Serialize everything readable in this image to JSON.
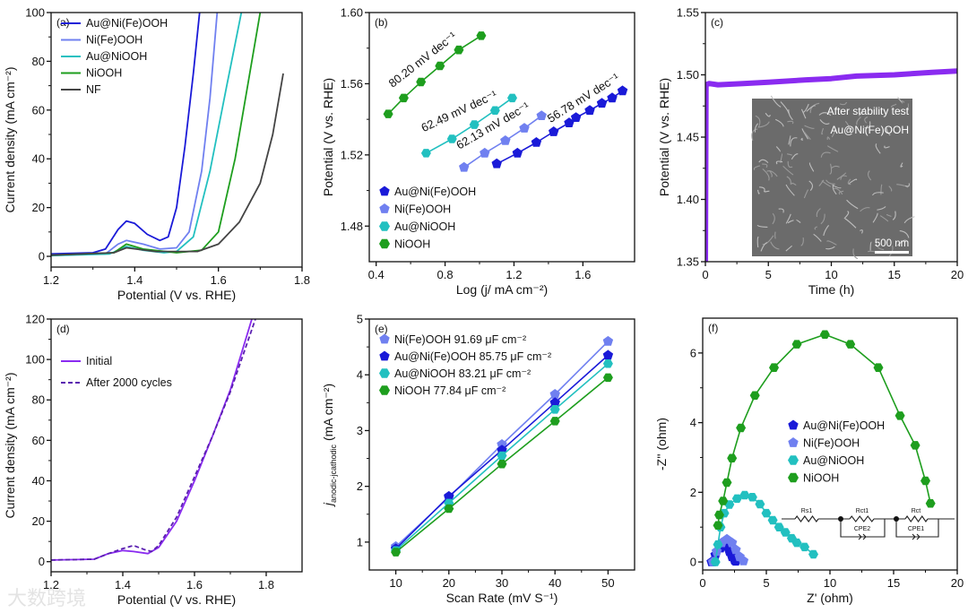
{
  "watermark": "大数跨境",
  "chart_data": [
    {
      "panel": "(a)",
      "type": "line",
      "xlabel": "Potential (V vs. RHE)",
      "ylabel": "Current density (mA cm⁻²)",
      "xlim": [
        1.2,
        1.8
      ],
      "ylim": [
        -4.4,
        100
      ],
      "xticks": [
        1.2,
        1.4,
        1.6,
        1.8
      ],
      "xtick_labels": [
        "1.2",
        "1.4",
        "1.6",
        "1.8"
      ],
      "yticks": [
        0,
        20,
        40,
        60,
        80,
        100
      ],
      "ytick_labels": [
        "0",
        "20",
        "40",
        "60",
        "80",
        "100"
      ],
      "legend": "top-left",
      "series": [
        {
          "name": "Au@Ni(Fe)OOH",
          "color": "#1a1ad8",
          "x": [
            1.2,
            1.3,
            1.33,
            1.36,
            1.38,
            1.4,
            1.43,
            1.46,
            1.48,
            1.5,
            1.52,
            1.54,
            1.555
          ],
          "y": [
            1,
            1.5,
            3,
            11,
            14.5,
            13.5,
            9,
            6.5,
            8,
            20,
            45,
            75,
            100
          ]
        },
        {
          "name": "Ni(Fe)OOH",
          "color": "#7080f0",
          "x": [
            1.2,
            1.33,
            1.36,
            1.38,
            1.42,
            1.46,
            1.5,
            1.53,
            1.56,
            1.58,
            1.597
          ],
          "y": [
            0.5,
            1,
            5,
            6.5,
            5,
            3,
            3.5,
            10,
            35,
            65,
            100
          ]
        },
        {
          "name": "Au@NiOOH",
          "color": "#22c0c0",
          "x": [
            1.2,
            1.34,
            1.38,
            1.42,
            1.47,
            1.5,
            1.54,
            1.58,
            1.62,
            1.655
          ],
          "y": [
            0.3,
            1,
            4,
            2.5,
            1.5,
            2,
            8,
            35,
            70,
            100
          ]
        },
        {
          "name": "NiOOH",
          "color": "#1e9e1e",
          "x": [
            1.2,
            1.35,
            1.38,
            1.42,
            1.5,
            1.56,
            1.6,
            1.64,
            1.67,
            1.7
          ],
          "y": [
            0.5,
            1.5,
            5,
            3,
            1.5,
            2.5,
            10,
            40,
            70,
            100
          ]
        },
        {
          "name": "NF",
          "color": "#444444",
          "x": [
            1.2,
            1.35,
            1.38,
            1.45,
            1.55,
            1.6,
            1.65,
            1.7,
            1.73,
            1.755
          ],
          "y": [
            0.5,
            1.5,
            3.5,
            2,
            2,
            5,
            14,
            30,
            50,
            75
          ]
        }
      ]
    },
    {
      "panel": "(b)",
      "type": "scatter",
      "xlabel": "Log (j/ mA cm⁻²)",
      "ylabel": "Potential (V vs. RHE)",
      "xlim": [
        0.36,
        1.9
      ],
      "ylim": [
        1.46,
        1.6
      ],
      "xticks": [
        0.4,
        0.8,
        1.2,
        1.6
      ],
      "xtick_labels": [
        "0.4",
        "0.8",
        "1.2",
        "1.6"
      ],
      "yticks": [
        1.48,
        1.52,
        1.56,
        1.6
      ],
      "ytick_labels": [
        "1.48",
        "1.52",
        "1.56",
        "1.60"
      ],
      "legend": "bottom-left",
      "annotations": [
        "80.20 mV dec⁻¹",
        "62.49 mV dec⁻¹",
        "62.13 mV dec⁻¹",
        "56.78 mV dec⁻¹"
      ],
      "series": [
        {
          "name": "Au@Ni(Fe)OOH",
          "color": "#1a1ad8",
          "marker": "pentagon",
          "tafel_slope": 56.78,
          "x": [
            1.1,
            1.22,
            1.33,
            1.43,
            1.52,
            1.56,
            1.64,
            1.71,
            1.77,
            1.83
          ],
          "y": [
            1.515,
            1.521,
            1.527,
            1.533,
            1.538,
            1.541,
            1.545,
            1.549,
            1.552,
            1.556
          ]
        },
        {
          "name": "Ni(Fe)OOH",
          "color": "#7080f0",
          "marker": "pentagon",
          "tafel_slope": 62.13,
          "x": [
            0.91,
            1.03,
            1.15,
            1.26,
            1.36
          ],
          "y": [
            1.513,
            1.521,
            1.528,
            1.535,
            1.542
          ]
        },
        {
          "name": "Au@NiOOH",
          "color": "#22c0c0",
          "marker": "hexagon",
          "tafel_slope": 62.49,
          "x": [
            0.69,
            0.84,
            0.97,
            1.09,
            1.19
          ],
          "y": [
            1.521,
            1.529,
            1.537,
            1.545,
            1.552
          ]
        },
        {
          "name": "NiOOH",
          "color": "#1e9e1e",
          "marker": "hexagon",
          "tafel_slope": 80.2,
          "x": [
            0.47,
            0.56,
            0.66,
            0.77,
            0.88,
            1.01
          ],
          "y": [
            1.543,
            1.552,
            1.561,
            1.57,
            1.579,
            1.587
          ]
        }
      ]
    },
    {
      "panel": "(c)",
      "type": "line",
      "xlabel": "Time (h)",
      "ylabel": "Potential (V vs. RHE)",
      "xlim": [
        0,
        20
      ],
      "ylim": [
        1.35,
        1.55
      ],
      "xticks": [
        0,
        5,
        10,
        15,
        20
      ],
      "xtick_labels": [
        "0",
        "5",
        "10",
        "15",
        "20"
      ],
      "yticks": [
        1.35,
        1.4,
        1.45,
        1.5,
        1.55
      ],
      "ytick_labels": [
        "1.35",
        "1.40",
        "1.45",
        "1.50",
        "1.55"
      ],
      "inset": {
        "title": "After stability test",
        "sample": "Au@Ni(Fe)OOH",
        "scale_bar": "500 nm"
      },
      "series": [
        {
          "name": "Au@Ni(Fe)OOH",
          "color": "#8a2bf0",
          "x": [
            0,
            0.05,
            0.3,
            1,
            3,
            5,
            8,
            10,
            12,
            15,
            18,
            20
          ],
          "y": [
            1.35,
            1.492,
            1.493,
            1.492,
            1.493,
            1.494,
            1.496,
            1.497,
            1.499,
            1.5,
            1.502,
            1.503
          ]
        }
      ]
    },
    {
      "panel": "(d)",
      "type": "line",
      "xlabel": "Potential (V vs. RHE)",
      "ylabel": "Current density (mA cm⁻²)",
      "xlim": [
        1.2,
        1.9
      ],
      "ylim": [
        -5,
        120
      ],
      "xticks": [
        1.2,
        1.4,
        1.6,
        1.8
      ],
      "xtick_labels": [
        "1.2",
        "1.4",
        "1.6",
        "1.8"
      ],
      "yticks": [
        0,
        20,
        40,
        60,
        80,
        100,
        120
      ],
      "ytick_labels": [
        "0",
        "20",
        "40",
        "60",
        "80",
        "100",
        "120"
      ],
      "legend": "top-left",
      "series": [
        {
          "name": "Initial",
          "color": "#8a2bf0",
          "dash": false,
          "x": [
            1.2,
            1.32,
            1.36,
            1.4,
            1.43,
            1.47,
            1.5,
            1.55,
            1.6,
            1.65,
            1.7,
            1.76
          ],
          "y": [
            0.8,
            1.2,
            4,
            5.5,
            5,
            4,
            7,
            20,
            40,
            62,
            85,
            120
          ]
        },
        {
          "name": "After 2000 cycles",
          "color": "#5a1fb0",
          "dash": true,
          "x": [
            1.2,
            1.32,
            1.36,
            1.4,
            1.43,
            1.46,
            1.48,
            1.5,
            1.55,
            1.6,
            1.65,
            1.7,
            1.77
          ],
          "y": [
            0.8,
            1.2,
            4,
            6.5,
            8,
            6,
            5,
            8,
            22,
            42,
            62,
            84,
            120
          ]
        }
      ]
    },
    {
      "panel": "(e)",
      "type": "line",
      "xlabel": "Scan Rate (mV S⁻¹)",
      "ylabel_parts": [
        "j",
        "anodic-jcathodic",
        " (mA cm⁻²)"
      ],
      "xlim": [
        5,
        55
      ],
      "ylim": [
        0.5,
        5
      ],
      "xticks": [
        10,
        20,
        30,
        40,
        50
      ],
      "xtick_labels": [
        "10",
        "20",
        "30",
        "40",
        "50"
      ],
      "yticks": [
        1,
        2,
        3,
        4,
        5
      ],
      "ytick_labels": [
        "1",
        "2",
        "3",
        "4",
        "5"
      ],
      "legend": "top-left",
      "series": [
        {
          "name": "Ni(Fe)OOH 91.69 μF cm⁻²",
          "color": "#7080f0",
          "marker": "pentagon",
          "x": [
            10,
            20,
            30,
            40,
            50
          ],
          "y": [
            0.92,
            1.8,
            2.75,
            3.65,
            4.6
          ]
        },
        {
          "name": "Au@Ni(Fe)OOH 85.75 μF cm⁻²",
          "color": "#1a1ad8",
          "marker": "pentagon",
          "x": [
            10,
            20,
            30,
            40,
            50
          ],
          "y": [
            0.88,
            1.82,
            2.65,
            3.5,
            4.35
          ]
        },
        {
          "name": "Au@NiOOH 83.21 μF cm⁻²",
          "color": "#22c0c0",
          "marker": "hexagon",
          "x": [
            10,
            20,
            30,
            40,
            50
          ],
          "y": [
            0.85,
            1.7,
            2.55,
            3.38,
            4.2
          ]
        },
        {
          "name": "NiOOH 77.84 μF cm⁻²",
          "color": "#1e9e1e",
          "marker": "hexagon",
          "x": [
            10,
            20,
            30,
            40,
            50
          ],
          "y": [
            0.82,
            1.6,
            2.4,
            3.17,
            3.95
          ]
        }
      ]
    },
    {
      "panel": "(f)",
      "type": "scatter",
      "xlabel": "Z' (ohm)",
      "ylabel": "-Z'' (ohm)",
      "xlim": [
        0,
        20
      ],
      "ylim": [
        -0.23,
        7
      ],
      "xticks": [
        0,
        5,
        10,
        15,
        20
      ],
      "xtick_labels": [
        "0",
        "5",
        "10",
        "15",
        "20"
      ],
      "yticks": [
        0,
        2,
        4,
        6
      ],
      "ytick_labels": [
        "0",
        "2",
        "4",
        "6"
      ],
      "legend": "center",
      "circuit": {
        "labels": [
          "Rs1",
          "Rct1",
          "CPE2",
          "Rct",
          "CPE1"
        ]
      },
      "series": [
        {
          "name": "Au@Ni(Fe)OOH",
          "color": "#1a1ad8",
          "marker": "pentagon",
          "x": [
            0.7,
            1.0,
            1.4,
            1.8,
            2.1,
            2.3,
            2.5,
            2.6
          ],
          "y": [
            0,
            0.2,
            0.4,
            0.45,
            0.3,
            0.15,
            0.05,
            0.02
          ]
        },
        {
          "name": "Ni(Fe)OOH",
          "color": "#7080f0",
          "marker": "pentagon",
          "x": [
            0.8,
            1.1,
            1.5,
            1.9,
            2.3,
            2.6,
            2.9,
            3.2
          ],
          "y": [
            0,
            0.3,
            0.55,
            0.65,
            0.55,
            0.35,
            0.15,
            0.03
          ]
        },
        {
          "name": "Au@NiOOH",
          "color": "#22c0c0",
          "marker": "hexagon",
          "x": [
            1.0,
            1.2,
            1.4,
            1.7,
            2.1,
            2.7,
            3.3,
            3.9,
            4.5,
            5.0,
            5.5,
            6.0,
            6.5,
            7.0,
            7.4,
            8.0,
            8.7
          ],
          "y": [
            0,
            0.5,
            1.0,
            1.4,
            1.65,
            1.82,
            1.92,
            1.86,
            1.66,
            1.4,
            1.2,
            1.0,
            0.85,
            0.68,
            0.55,
            0.43,
            0.22
          ]
        },
        {
          "name": "NiOOH",
          "color": "#1e9e1e",
          "marker": "hexagon",
          "x": [
            1.2,
            1.3,
            1.6,
            1.9,
            2.3,
            3.0,
            4.1,
            5.6,
            7.4,
            9.6,
            11.6,
            13.8,
            15.5,
            16.7,
            17.5,
            17.9
          ],
          "y": [
            1.05,
            1.35,
            1.75,
            2.28,
            2.98,
            3.85,
            4.78,
            5.58,
            6.25,
            6.53,
            6.25,
            5.58,
            4.2,
            3.35,
            2.33,
            1.68
          ]
        }
      ]
    }
  ]
}
